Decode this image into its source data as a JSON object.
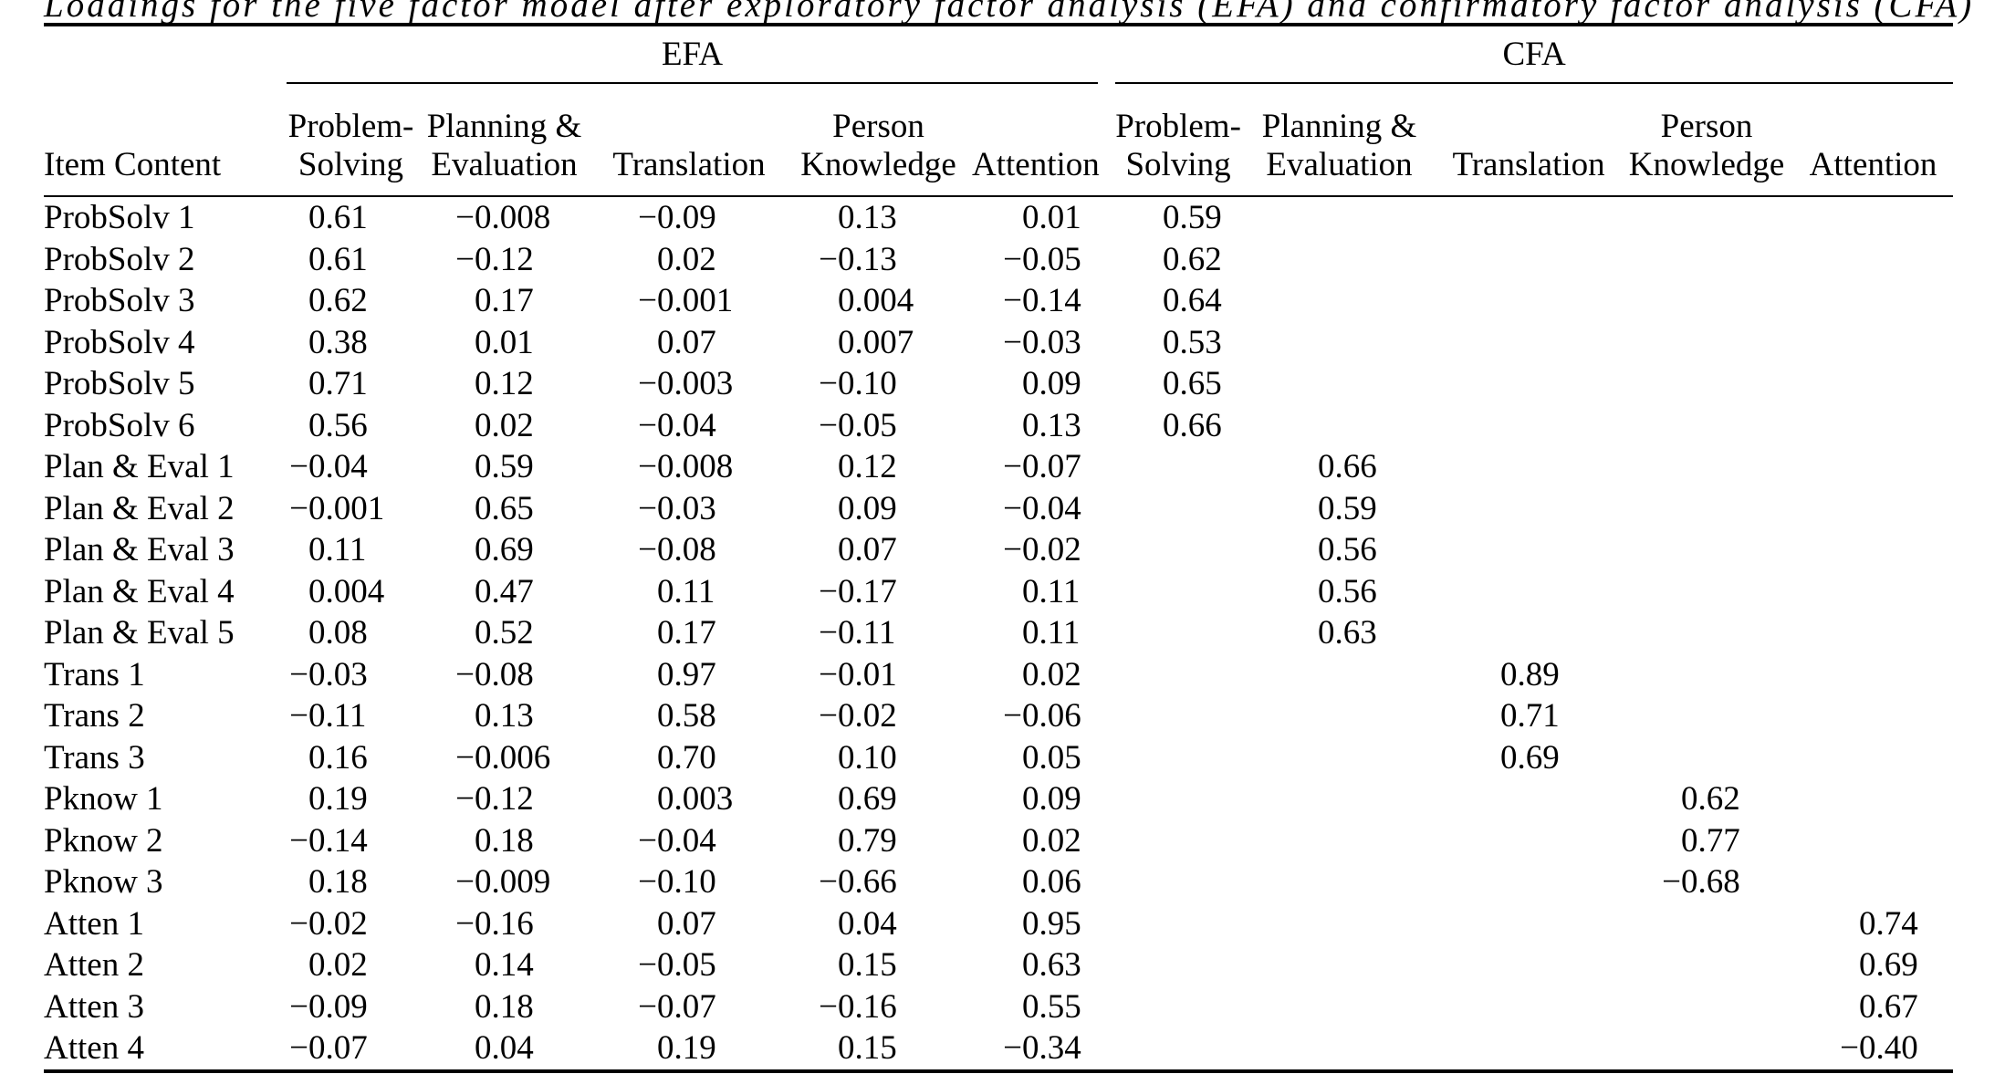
{
  "title": "Loadings for the five factor model after exploratory factor analysis (EFA) and confirmatory factor analysis (CFA)",
  "table": {
    "group_headers": {
      "efa": "EFA",
      "cfa": "CFA"
    },
    "item_column_header": "Item Content",
    "factor_column_headers": [
      [
        "Problem-",
        "Solving"
      ],
      [
        "Planning &",
        "Evaluation"
      ],
      [
        "Translation"
      ],
      [
        "Person",
        "Knowledge"
      ],
      [
        "Attention"
      ]
    ],
    "rows": [
      {
        "item": "ProbSolv 1",
        "efa": [
          "0.61",
          "−0.008",
          "−0.09",
          "0.13",
          "0.01"
        ],
        "cfa": [
          "0.59",
          "",
          "",
          "",
          ""
        ]
      },
      {
        "item": "ProbSolv 2",
        "efa": [
          "0.61",
          "−0.12",
          "0.02",
          "−0.13",
          "−0.05"
        ],
        "cfa": [
          "0.62",
          "",
          "",
          "",
          ""
        ]
      },
      {
        "item": "ProbSolv 3",
        "efa": [
          "0.62",
          "0.17",
          "−0.001",
          "0.004",
          "−0.14"
        ],
        "cfa": [
          "0.64",
          "",
          "",
          "",
          ""
        ]
      },
      {
        "item": "ProbSolv 4",
        "efa": [
          "0.38",
          "0.01",
          "0.07",
          "0.007",
          "−0.03"
        ],
        "cfa": [
          "0.53",
          "",
          "",
          "",
          ""
        ]
      },
      {
        "item": "ProbSolv 5",
        "efa": [
          "0.71",
          "0.12",
          "−0.003",
          "−0.10",
          "0.09"
        ],
        "cfa": [
          "0.65",
          "",
          "",
          "",
          ""
        ]
      },
      {
        "item": "ProbSolv 6",
        "efa": [
          "0.56",
          "0.02",
          "−0.04",
          "−0.05",
          "0.13"
        ],
        "cfa": [
          "0.66",
          "",
          "",
          "",
          ""
        ]
      },
      {
        "item": "Plan & Eval 1",
        "efa": [
          "−0.04",
          "0.59",
          "−0.008",
          "0.12",
          "−0.07"
        ],
        "cfa": [
          "",
          "0.66",
          "",
          "",
          ""
        ]
      },
      {
        "item": "Plan & Eval 2",
        "efa": [
          "−0.001",
          "0.65",
          "−0.03",
          "0.09",
          "−0.04"
        ],
        "cfa": [
          "",
          "0.59",
          "",
          "",
          ""
        ]
      },
      {
        "item": "Plan & Eval 3",
        "efa": [
          "0.11",
          "0.69",
          "−0.08",
          "0.07",
          "−0.02"
        ],
        "cfa": [
          "",
          "0.56",
          "",
          "",
          ""
        ]
      },
      {
        "item": "Plan & Eval 4",
        "efa": [
          "0.004",
          "0.47",
          "0.11",
          "−0.17",
          "0.11"
        ],
        "cfa": [
          "",
          "0.56",
          "",
          "",
          ""
        ]
      },
      {
        "item": "Plan & Eval 5",
        "efa": [
          "0.08",
          "0.52",
          "0.17",
          "−0.11",
          "0.11"
        ],
        "cfa": [
          "",
          "0.63",
          "",
          "",
          ""
        ]
      },
      {
        "item": "Trans 1",
        "efa": [
          "−0.03",
          "−0.08",
          "0.97",
          "−0.01",
          "0.02"
        ],
        "cfa": [
          "",
          "",
          "0.89",
          "",
          ""
        ]
      },
      {
        "item": "Trans 2",
        "efa": [
          "−0.11",
          "0.13",
          "0.58",
          "−0.02",
          "−0.06"
        ],
        "cfa": [
          "",
          "",
          "0.71",
          "",
          ""
        ]
      },
      {
        "item": "Trans 3",
        "efa": [
          "0.16",
          "−0.006",
          "0.70",
          "0.10",
          "0.05"
        ],
        "cfa": [
          "",
          "",
          "0.69",
          "",
          ""
        ]
      },
      {
        "item": "Pknow 1",
        "efa": [
          "0.19",
          "−0.12",
          "0.003",
          "0.69",
          "0.09"
        ],
        "cfa": [
          "",
          "",
          "",
          "0.62",
          ""
        ]
      },
      {
        "item": "Pknow 2",
        "efa": [
          "−0.14",
          "0.18",
          "−0.04",
          "0.79",
          "0.02"
        ],
        "cfa": [
          "",
          "",
          "",
          "0.77",
          ""
        ]
      },
      {
        "item": "Pknow 3",
        "efa": [
          "0.18",
          "−0.009",
          "−0.10",
          "−0.66",
          "0.06"
        ],
        "cfa": [
          "",
          "",
          "",
          "−0.68",
          ""
        ]
      },
      {
        "item": "Atten 1",
        "efa": [
          "−0.02",
          "−0.16",
          "0.07",
          "0.04",
          "0.95"
        ],
        "cfa": [
          "",
          "",
          "",
          "",
          "0.74"
        ]
      },
      {
        "item": "Atten 2",
        "efa": [
          "0.02",
          "0.14",
          "−0.05",
          "0.15",
          "0.63"
        ],
        "cfa": [
          "",
          "",
          "",
          "",
          "0.69"
        ]
      },
      {
        "item": "Atten 3",
        "efa": [
          "−0.09",
          "0.18",
          "−0.07",
          "−0.16",
          "0.55"
        ],
        "cfa": [
          "",
          "",
          "",
          "",
          "0.67"
        ]
      },
      {
        "item": "Atten 4",
        "efa": [
          "−0.07",
          "0.04",
          "0.19",
          "0.15",
          "−0.34"
        ],
        "cfa": [
          "",
          "",
          "",
          "",
          "−0.40"
        ]
      }
    ]
  }
}
